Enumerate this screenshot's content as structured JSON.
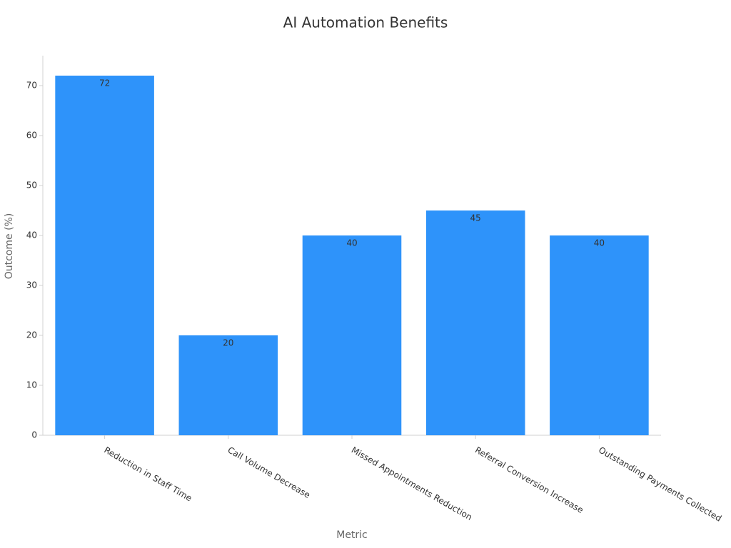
{
  "chart_data": {
    "type": "bar",
    "title": "AI Automation Benefits",
    "x_label": "Metric",
    "y_label": "Outcome (%)",
    "categories": [
      "Reduction in Staff Time",
      "Call Volume Decrease",
      "Missed Appointments Reduction",
      "Referral Conversion Increase",
      "Outstanding Payments Collected"
    ],
    "values": [
      72,
      20,
      40,
      45,
      40
    ],
    "color": "#2e93fa",
    "ylim": [
      0,
      76
    ],
    "yticks": [
      0,
      10,
      20,
      30,
      40,
      50,
      60,
      70
    ],
    "grid": false
  }
}
